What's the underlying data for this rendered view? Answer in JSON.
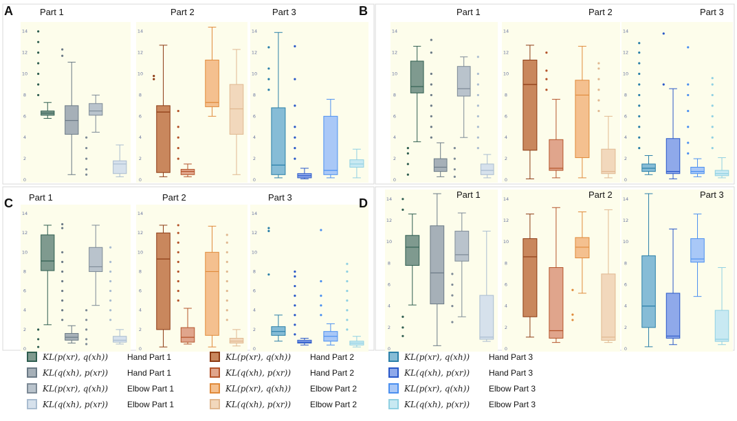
{
  "figure": {
    "legend": [
      {
        "math": "KL(p(xr), q(xh))",
        "label": "Hand Part 1",
        "color": "#2e5d4f",
        "fill": "#7f9a8f"
      },
      {
        "math": "KL(q(xh), p(xr))",
        "label": "Hand Part 1",
        "color": "#6b7a86",
        "fill": "#a6b0b8"
      },
      {
        "math": "KL(p(xr), q(xh))",
        "label": "Elbow Part 1",
        "color": "#7d8a96",
        "fill": "#b9c3cc"
      },
      {
        "math": "KL(q(xh), p(xr))",
        "label": "Elbow Part 1",
        "color": "#a9bcd0",
        "fill": "#d6e1ec"
      },
      {
        "math": "KL(p(xr), q(xh))",
        "label": "Hand Part 2",
        "color": "#8c3a13",
        "fill": "#c9875d"
      },
      {
        "math": "KL(q(xh), p(xr))",
        "label": "Hand Part 2",
        "color": "#b4532a",
        "fill": "#e0a58c"
      },
      {
        "math": "KL(p(xr), q(xh))",
        "label": "Elbow Part 2",
        "color": "#e08a3a",
        "fill": "#f4c08f"
      },
      {
        "math": "KL(q(xh), p(xr))",
        "label": "Elbow Part 2",
        "color": "#e0b890",
        "fill": "#f2d8bc"
      },
      {
        "math": "KL(p(xr), q(xh))",
        "label": "Hand Part 3",
        "color": "#2a7fa8",
        "fill": "#86bcd6"
      },
      {
        "math": "KL(q(xh), p(xr))",
        "label": "Hand Part 3",
        "color": "#2857c8",
        "fill": "#8fa9ea"
      },
      {
        "math": "KL(p(xr), q(xh))",
        "label": "Elbow Part 3",
        "color": "#4a8ff0",
        "fill": "#a9c8f7"
      },
      {
        "math": "KL(q(xh), p(xr))",
        "label": "Elbow Part 3",
        "color": "#8fd0e2",
        "fill": "#c8e9f2"
      }
    ]
  },
  "chart_data": [
    {
      "panel": "A",
      "type": "box",
      "ylim": [
        0,
        14.5
      ],
      "yticks": [
        0,
        2,
        4,
        6,
        8,
        10,
        12,
        14
      ],
      "groups": [
        {
          "title": "Part 1",
          "boxes": [
            {
              "min": 5.8,
              "q1": 6.1,
              "median": 6.3,
              "q3": 6.5,
              "max": 7.3,
              "fliers": [
                8,
                9,
                10,
                11,
                12,
                13,
                14
              ]
            },
            {
              "min": 0.5,
              "q1": 4.3,
              "median": 5.6,
              "q3": 7.0,
              "max": 11.1,
              "fliers": [
                11.7,
                12.3
              ]
            },
            {
              "min": 4.5,
              "q1": 6.1,
              "median": 6.5,
              "q3": 7.2,
              "max": 8.0,
              "fliers": [
                0.5,
                1,
                2,
                3,
                4
              ]
            },
            {
              "min": 0.3,
              "q1": 0.6,
              "median": 1.5,
              "q3": 1.8,
              "max": 3.3,
              "fliers": []
            }
          ]
        },
        {
          "title": "Part 2",
          "boxes": [
            {
              "min": 0.3,
              "q1": 0.7,
              "median": 6.4,
              "q3": 7.0,
              "max": 12.7,
              "fliers": [
                9.5,
                9.8
              ]
            },
            {
              "min": 0.3,
              "q1": 0.5,
              "median": 0.8,
              "q3": 1.0,
              "max": 1.5,
              "fliers": [
                2,
                3,
                4,
                5,
                6.5
              ]
            },
            {
              "min": 6.0,
              "q1": 6.9,
              "median": 7.3,
              "q3": 11.3,
              "max": 14.4,
              "fliers": []
            },
            {
              "min": 0.5,
              "q1": 4.3,
              "median": 6.7,
              "q3": 9.0,
              "max": 12.3,
              "fliers": []
            }
          ]
        },
        {
          "title": "Part 3",
          "boxes": [
            {
              "min": 0.2,
              "q1": 0.5,
              "median": 1.4,
              "q3": 6.8,
              "max": 13.9,
              "fliers": [
                8.5,
                9.5,
                10.5,
                12.5
              ]
            },
            {
              "min": 0.1,
              "q1": 0.2,
              "median": 0.4,
              "q3": 0.6,
              "max": 1.1,
              "fliers": [
                2,
                3,
                4,
                5,
                7,
                9.5,
                12.6
              ]
            },
            {
              "min": 0.2,
              "q1": 0.5,
              "median": 0.9,
              "q3": 6.0,
              "max": 7.6,
              "fliers": []
            },
            {
              "min": 0.2,
              "q1": 1.2,
              "median": 1.5,
              "q3": 1.9,
              "max": 2.9,
              "fliers": []
            }
          ]
        }
      ]
    },
    {
      "panel": "B",
      "type": "box",
      "ylim": [
        0,
        14.5
      ],
      "yticks": [
        0,
        2,
        4,
        6,
        8,
        10,
        12,
        14
      ],
      "groups": [
        {
          "title": "Part 1",
          "boxes": [
            {
              "min": 3.6,
              "q1": 8.2,
              "median": 8.8,
              "q3": 11.2,
              "max": 12.6,
              "fliers": [
                0.5,
                1.5,
                2.5,
                3
              ]
            },
            {
              "min": 0.3,
              "q1": 0.8,
              "median": 1.2,
              "q3": 2.0,
              "max": 3.5,
              "fliers": [
                4,
                5,
                6,
                7,
                8,
                9,
                10,
                12,
                13.2
              ]
            },
            {
              "min": 4.0,
              "q1": 7.9,
              "median": 8.6,
              "q3": 10.7,
              "max": 11.6,
              "fliers": [
                0.3,
                1,
                2,
                3
              ]
            },
            {
              "min": 0.2,
              "q1": 0.5,
              "median": 0.9,
              "q3": 1.5,
              "max": 2.4,
              "fliers": [
                3,
                4,
                5,
                6,
                7,
                8,
                9,
                10,
                11.6
              ]
            }
          ]
        },
        {
          "title": "Part 2",
          "boxes": [
            {
              "min": 0.1,
              "q1": 2.8,
              "median": 9.0,
              "q3": 11.3,
              "max": 12.7,
              "fliers": []
            },
            {
              "min": 0.2,
              "q1": 0.9,
              "median": 1.1,
              "q3": 3.8,
              "max": 7.6,
              "fliers": [
                8.5,
                9.5,
                10.3,
                12
              ]
            },
            {
              "min": 0.2,
              "q1": 2.1,
              "median": 8.0,
              "q3": 9.4,
              "max": 12.6,
              "fliers": []
            },
            {
              "min": 0.2,
              "q1": 0.6,
              "median": 0.8,
              "q3": 2.9,
              "max": 6.0,
              "fliers": [
                6.5,
                7.5,
                8.5,
                9.5,
                10.5,
                11
              ]
            }
          ]
        },
        {
          "title": "Part 3",
          "boxes": [
            {
              "min": 0.5,
              "q1": 0.8,
              "median": 1.1,
              "q3": 1.5,
              "max": 2.3,
              "fliers": [
                3,
                4,
                5,
                6,
                7,
                8,
                9,
                10,
                11,
                12,
                12.9
              ]
            },
            {
              "min": 0.1,
              "q1": 0.6,
              "median": 0.8,
              "q3": 3.9,
              "max": 8.6,
              "fliers": [
                9,
                13.8
              ]
            },
            {
              "min": 0.3,
              "q1": 0.6,
              "median": 0.8,
              "q3": 1.2,
              "max": 2.0,
              "fliers": [
                2.5,
                3.5,
                5,
                6.5,
                8,
                9,
                12.5
              ]
            },
            {
              "min": 0.2,
              "q1": 0.4,
              "median": 0.6,
              "q3": 0.9,
              "max": 2.1,
              "fliers": [
                3,
                4,
                5,
                6,
                7,
                8,
                9,
                9.6
              ]
            }
          ]
        }
      ]
    },
    {
      "panel": "C",
      "type": "box",
      "ylim": [
        0,
        14.5
      ],
      "yticks": [
        0,
        2,
        4,
        6,
        8,
        10,
        12,
        14
      ],
      "groups": [
        {
          "title": "Part 1",
          "boxes": [
            {
              "min": 2.5,
              "q1": 8.1,
              "median": 9.1,
              "q3": 11.8,
              "max": 12.8,
              "fliers": [
                0.2,
                1,
                2
              ]
            },
            {
              "min": 0.6,
              "q1": 0.9,
              "median": 1.2,
              "q3": 1.6,
              "max": 2.4,
              "fliers": [
                3,
                4,
                5,
                6,
                7,
                8,
                9,
                10,
                12.5,
                12.9
              ]
            },
            {
              "min": 4.5,
              "q1": 8.0,
              "median": 8.5,
              "q3": 10.5,
              "max": 12.8,
              "fliers": [
                0.5,
                1,
                2,
                3,
                4
              ]
            },
            {
              "min": 0.5,
              "q1": 0.7,
              "median": 0.9,
              "q3": 1.3,
              "max": 2.0,
              "fliers": [
                3,
                4,
                5,
                6,
                7,
                8,
                9,
                10.5
              ]
            }
          ]
        },
        {
          "title": "Part 2",
          "boxes": [
            {
              "min": 0.2,
              "q1": 2.0,
              "median": 9.3,
              "q3": 12.0,
              "max": 12.8,
              "fliers": []
            },
            {
              "min": 0.5,
              "q1": 0.7,
              "median": 1.2,
              "q3": 2.2,
              "max": 4.2,
              "fliers": [
                5,
                6,
                7,
                8,
                9,
                10,
                11,
                12,
                12.8
              ]
            },
            {
              "min": 0.2,
              "q1": 1.4,
              "median": 8.0,
              "q3": 10.0,
              "max": 12.7,
              "fliers": []
            },
            {
              "min": 0.3,
              "q1": 0.6,
              "median": 0.8,
              "q3": 1.1,
              "max": 2.0,
              "fliers": [
                3,
                4,
                5,
                6,
                7,
                8,
                9,
                10,
                11,
                11.8
              ]
            }
          ]
        },
        {
          "title": "Part 3",
          "boxes": [
            {
              "min": 0.8,
              "q1": 1.4,
              "median": 1.8,
              "q3": 2.3,
              "max": 3.5,
              "fliers": [
                7.7,
                12.2,
                12.5
              ]
            },
            {
              "min": 0.4,
              "q1": 0.6,
              "median": 0.7,
              "q3": 0.9,
              "max": 1.1,
              "fliers": [
                1.5,
                2.5,
                3.5,
                4.5,
                5.5,
                6.5,
                7.5,
                8
              ]
            },
            {
              "min": 0.4,
              "q1": 0.8,
              "median": 1.3,
              "q3": 1.8,
              "max": 2.6,
              "fliers": [
                3.5,
                4.5,
                5.5,
                7,
                12.3
              ]
            },
            {
              "min": 0.2,
              "q1": 0.4,
              "median": 0.6,
              "q3": 0.8,
              "max": 1.3,
              "fliers": [
                2,
                3,
                4,
                5,
                6,
                7,
                8,
                8.8
              ]
            }
          ]
        }
      ]
    },
    {
      "panel": "D",
      "type": "box",
      "ylim": [
        0,
        14.5
      ],
      "yticks": [
        0,
        2,
        4,
        6,
        8,
        10,
        12,
        14
      ],
      "groups": [
        {
          "title": "Part 1",
          "boxes": [
            {
              "min": 4.1,
              "q1": 7.8,
              "median": 9.5,
              "q3": 10.6,
              "max": 12.6,
              "fliers": [
                1.2,
                2,
                3,
                13,
                14
              ]
            },
            {
              "min": 0.3,
              "q1": 4.2,
              "median": 7.1,
              "q3": 11.5,
              "max": 14.5,
              "fliers": []
            },
            {
              "min": 3.0,
              "q1": 8.2,
              "median": 8.8,
              "q3": 11.0,
              "max": 12.7,
              "fliers": [
                2.5,
                4,
                5,
                6,
                7
              ]
            },
            {
              "min": 0.7,
              "q1": 0.9,
              "median": 1.1,
              "q3": 5.0,
              "max": 11.0,
              "fliers": []
            }
          ]
        },
        {
          "title": "Part 2",
          "boxes": [
            {
              "min": 1.1,
              "q1": 3.0,
              "median": 8.6,
              "q3": 10.3,
              "max": 12.6,
              "fliers": []
            },
            {
              "min": 0.6,
              "q1": 1.0,
              "median": 1.7,
              "q3": 7.6,
              "max": 13.2,
              "fliers": []
            },
            {
              "min": 5.2,
              "q1": 8.5,
              "median": 9.5,
              "q3": 10.4,
              "max": 12.8,
              "fliers": [
                2.7,
                3.2,
                5.5
              ]
            },
            {
              "min": 0.6,
              "q1": 0.8,
              "median": 1.1,
              "q3": 7.0,
              "max": 13.0,
              "fliers": []
            }
          ]
        },
        {
          "title": "Part 3",
          "boxes": [
            {
              "min": 0.2,
              "q1": 2.0,
              "median": 4.0,
              "q3": 8.7,
              "max": 14.5,
              "fliers": []
            },
            {
              "min": 0.4,
              "q1": 1.0,
              "median": 1.2,
              "q3": 5.2,
              "max": 11.2,
              "fliers": []
            },
            {
              "min": 4.9,
              "q1": 8.1,
              "median": 8.4,
              "q3": 10.3,
              "max": 12.6,
              "fliers": []
            },
            {
              "min": 0.4,
              "q1": 0.7,
              "median": 0.9,
              "q3": 3.6,
              "max": 7.6,
              "fliers": []
            }
          ]
        }
      ]
    }
  ]
}
